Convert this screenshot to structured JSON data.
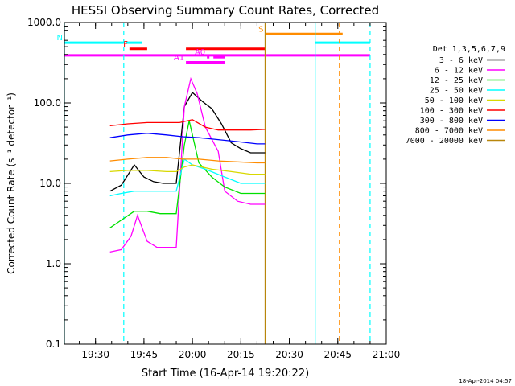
{
  "chart_data": {
    "type": "line",
    "title": "HESSI Observing Summary Count Rates, Corrected",
    "xlabel": "Start Time (16-Apr-14 19:20:22)",
    "ylabel": "Corrected Count Rate (s⁻¹ detector⁻¹)",
    "yscale": "log",
    "ylim": [
      0.1,
      1000
    ],
    "xlim": [
      "19:20:22",
      "21:00:00"
    ],
    "x_ticks": [
      "19:30",
      "19:45",
      "20:00",
      "20:15",
      "20:30",
      "20:45",
      "21:00"
    ],
    "y_ticks": [
      "0.1",
      "1.0",
      "10.0",
      "100.0",
      "1000.0"
    ],
    "legend": {
      "header": "Det 1,3,5,6,7,9",
      "placement": "right"
    },
    "timestamp": "18-Apr-2014 04:57",
    "series": [
      {
        "name": "3 - 6 keV",
        "color": "#000000",
        "x": [
          "19:34:30",
          "19:38:00",
          "19:42:00",
          "19:45:00",
          "19:48:00",
          "19:51:00",
          "19:55:00",
          "19:57:30",
          "20:00:00",
          "20:03:00",
          "20:06:00",
          "20:09:00",
          "20:12:00",
          "20:15:00",
          "20:18:00",
          "20:22:30"
        ],
        "y": [
          8,
          9.5,
          17,
          12,
          10.5,
          10,
          10,
          90,
          135,
          105,
          85,
          55,
          32,
          27,
          24,
          24
        ]
      },
      {
        "name": "6 - 12 keV",
        "color": "#ff00ff",
        "x": [
          "19:34:30",
          "19:38:00",
          "19:41:00",
          "19:43:00",
          "19:46:00",
          "19:49:00",
          "19:52:00",
          "19:55:00",
          "19:57:30",
          "19:59:30",
          "20:01:30",
          "20:04:00",
          "20:08:00",
          "20:10:00",
          "20:14:00",
          "20:18:00",
          "20:22:30"
        ],
        "y": [
          1.4,
          1.5,
          2.2,
          4,
          1.9,
          1.6,
          1.6,
          1.6,
          90,
          200,
          130,
          50,
          25,
          8,
          6,
          5.5,
          5.5
        ]
      },
      {
        "name": "12 - 25 keV",
        "color": "#00e000",
        "x": [
          "19:34:30",
          "19:38:00",
          "19:42:00",
          "19:46:00",
          "19:50:00",
          "19:55:00",
          "19:57:30",
          "19:59:00",
          "20:02:00",
          "20:06:00",
          "20:10:00",
          "20:15:00",
          "20:22:30"
        ],
        "y": [
          2.8,
          3.5,
          4.5,
          4.5,
          4.2,
          4.2,
          30,
          60,
          18,
          12,
          9,
          7.5,
          7.5
        ]
      },
      {
        "name": "25 - 50 keV",
        "color": "#00ffff",
        "x": [
          "19:34:30",
          "19:38:00",
          "19:42:00",
          "19:46:00",
          "19:50:00",
          "19:55:00",
          "19:57:30",
          "20:00:00",
          "20:04:00",
          "20:10:00",
          "20:15:00",
          "20:22:30"
        ],
        "y": [
          7,
          7.5,
          8,
          8,
          8,
          8,
          20,
          17,
          15,
          12,
          10,
          10
        ]
      },
      {
        "name": "50 - 100 keV",
        "color": "#d8d800",
        "x": [
          "19:34:30",
          "19:40:00",
          "19:46:00",
          "19:52:00",
          "19:55:00",
          "19:57:30",
          "20:00:00",
          "20:06:00",
          "20:12:00",
          "20:18:00",
          "20:22:30"
        ],
        "y": [
          14,
          14.5,
          14.5,
          14,
          14,
          16,
          17,
          15,
          14,
          13,
          13
        ]
      },
      {
        "name": "100 - 300 keV",
        "color": "#ff0000",
        "x": [
          "19:34:30",
          "19:40:00",
          "19:46:00",
          "19:52:00",
          "19:56:00",
          "20:00:00",
          "20:04:00",
          "20:08:00",
          "20:12:00",
          "20:18:00",
          "20:22:30"
        ],
        "y": [
          52,
          55,
          57,
          57,
          57,
          62,
          50,
          46,
          46,
          46,
          47
        ]
      },
      {
        "name": "300 - 800 keV",
        "color": "#0000ff",
        "x": [
          "19:34:30",
          "19:40:00",
          "19:46:00",
          "19:52:00",
          "19:57:00",
          "20:02:00",
          "20:08:00",
          "20:14:00",
          "20:20:00",
          "20:22:30"
        ],
        "y": [
          37,
          40,
          42,
          40,
          38,
          37,
          35,
          33,
          31,
          31
        ]
      },
      {
        "name": "800 - 7000 keV",
        "color": "#ff8c00",
        "x": [
          "19:34:30",
          "19:40:00",
          "19:46:00",
          "19:52:00",
          "19:57:00",
          "20:02:00",
          "20:08:00",
          "20:14:00",
          "20:20:00",
          "20:22:30"
        ],
        "y": [
          19,
          20,
          21,
          21,
          20,
          20,
          19,
          18.5,
          18,
          18
        ]
      },
      {
        "name": "7000 - 20000 keV",
        "color": "#b8860b",
        "x": [],
        "y": []
      }
    ],
    "vertical_lines": [
      {
        "time": "19:20:22",
        "color": "#00ffff",
        "style": "solid"
      },
      {
        "time": "19:38:45",
        "color": "#00ffff",
        "style": "dashed"
      },
      {
        "time": "20:22:30",
        "color": "#b8860b",
        "style": "solid"
      },
      {
        "time": "20:38:00",
        "color": "#00ffff",
        "style": "solid"
      },
      {
        "time": "20:45:30",
        "color": "#ff8c00",
        "style": "dashed"
      },
      {
        "time": "20:55:00",
        "color": "#00ffff",
        "style": "dashed"
      }
    ],
    "flag_bars": [
      {
        "label": "N",
        "color": "#00ffff",
        "level": 560,
        "segments": [
          [
            "19:20:22",
            "19:38:45"
          ],
          [
            "19:39:30",
            "19:44:30"
          ],
          [
            "20:38:00",
            "20:55:00"
          ]
        ]
      },
      {
        "label": "S",
        "color": "#ff8c00",
        "level": 720,
        "segments": [
          [
            "20:22:30",
            "20:46:30"
          ]
        ]
      },
      {
        "label": "F",
        "color": "#ff0000",
        "level": 470,
        "segments": [
          [
            "19:40:30",
            "19:46:00"
          ],
          [
            "19:58:00",
            "20:22:30"
          ]
        ]
      },
      {
        "label": "",
        "color": "#ff00ff",
        "level": 390,
        "segments": [
          [
            "19:20:22",
            "20:55:00"
          ]
        ]
      },
      {
        "label": "A0",
        "color": "#ff00ff",
        "level": 370,
        "segments": [
          [
            "20:04:30",
            "20:05:15"
          ],
          [
            "20:06:30",
            "20:10:00"
          ]
        ]
      },
      {
        "label": "A1",
        "color": "#ff00ff",
        "level": 320,
        "segments": [
          [
            "19:58:00",
            "20:07:30"
          ],
          [
            "20:06:30",
            "20:10:00"
          ]
        ]
      }
    ]
  }
}
